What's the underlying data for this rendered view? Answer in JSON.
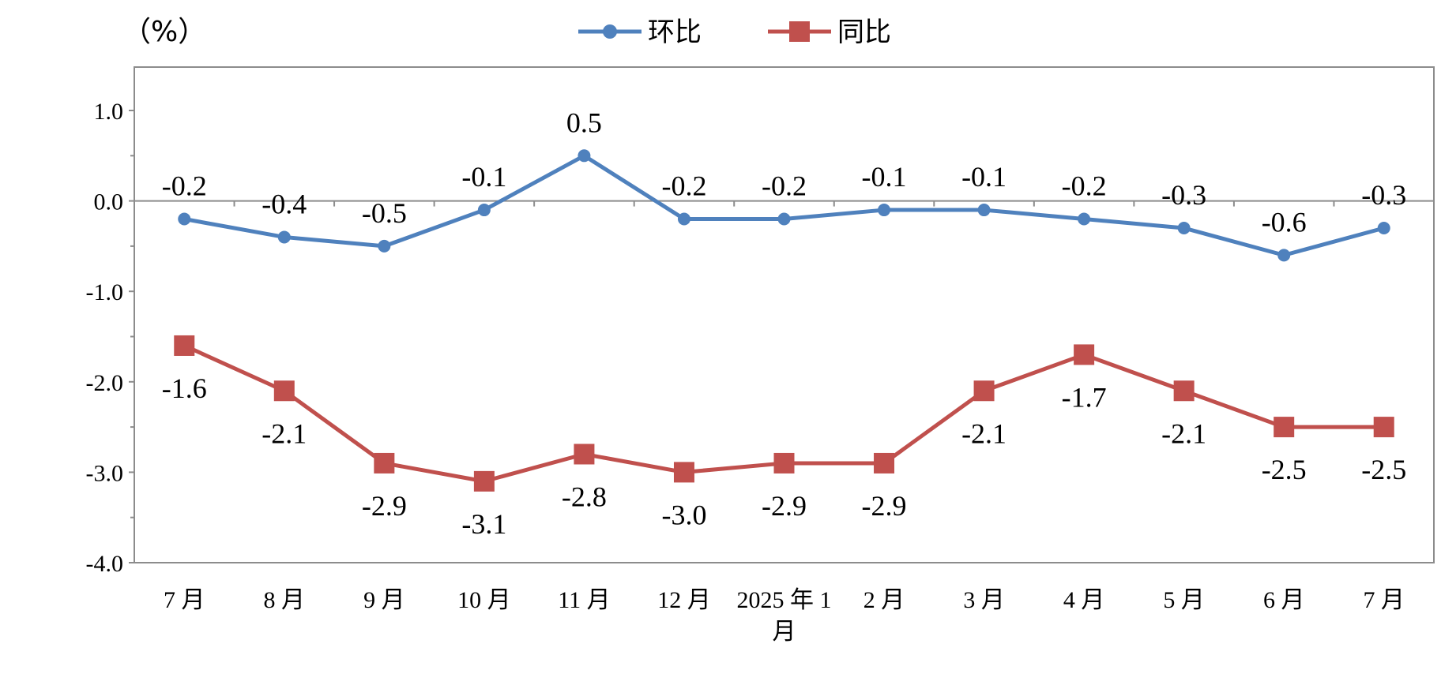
{
  "chart_data": {
    "type": "line",
    "unit_label": "（%）",
    "categories": [
      "7月",
      "8月",
      "9月",
      "10月",
      "11月",
      "12月",
      "2025年1月",
      "2月",
      "3月",
      "4月",
      "5月",
      "6月",
      "7月"
    ],
    "category_display": [
      [
        "7 月"
      ],
      [
        "8 月"
      ],
      [
        "9 月"
      ],
      [
        "10 月"
      ],
      [
        "11 月"
      ],
      [
        "12 月"
      ],
      [
        "2025 年 1",
        "月"
      ],
      [
        "2 月"
      ],
      [
        "3 月"
      ],
      [
        "4 月"
      ],
      [
        "5 月"
      ],
      [
        "6 月"
      ],
      [
        "7 月"
      ]
    ],
    "ylim": [
      -4.0,
      1.0
    ],
    "yticks": [
      "1.0",
      "0.0",
      "-1.0",
      "-2.0",
      "-3.0",
      "-4.0"
    ],
    "legend_position": "top",
    "grid": false,
    "series": [
      {
        "name": "环比",
        "color": "#4f81bd",
        "marker": "circle",
        "values": [
          -0.2,
          -0.4,
          -0.5,
          -0.1,
          0.5,
          -0.2,
          -0.2,
          -0.1,
          -0.1,
          -0.2,
          -0.3,
          -0.6,
          -0.3
        ],
        "labels": [
          "-0.2",
          "-0.4",
          "-0.5",
          "-0.1",
          "0.5",
          "-0.2",
          "-0.2",
          "-0.1",
          "-0.1",
          "-0.2",
          "-0.3",
          "-0.6",
          "-0.3"
        ],
        "label_position": "above"
      },
      {
        "name": "同比",
        "color": "#c0504d",
        "marker": "square",
        "values": [
          -1.6,
          -2.1,
          -2.9,
          -3.1,
          -2.8,
          -3.0,
          -2.9,
          -2.9,
          -2.1,
          -1.7,
          -2.1,
          -2.5,
          -2.5
        ],
        "labels": [
          "-1.6",
          "-2.1",
          "-2.9",
          "-3.1",
          "-2.8",
          "-3.0",
          "-2.9",
          "-2.9",
          "-2.1",
          "-1.7",
          "-2.1",
          "-2.5",
          "-2.5"
        ],
        "label_position": "below"
      }
    ]
  }
}
